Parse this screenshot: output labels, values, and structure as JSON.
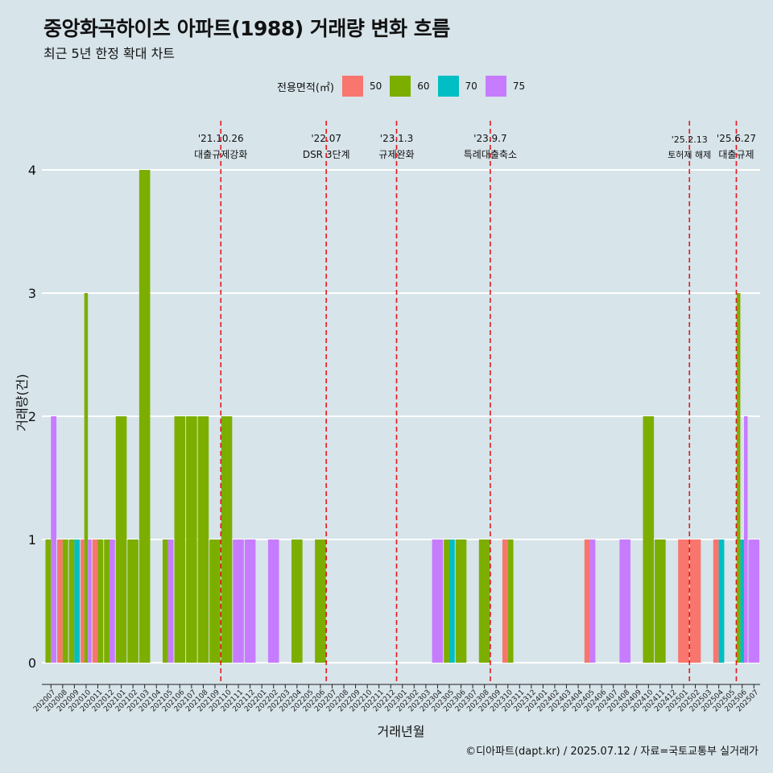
{
  "title": "중앙화곡하이츠 아파트(1988) 거래량 변화 흐름",
  "subtitle": "최근 5년 한정 확대 차트",
  "caption": "©디아파트(dapt.kr) / 2025.07.12 / 자료=국토교통부 실거래가",
  "legend": {
    "title": "전용면적(㎡)",
    "items": [
      {
        "label": "50",
        "color": "#f8766d"
      },
      {
        "label": "60",
        "color": "#7cae00"
      },
      {
        "label": "70",
        "color": "#00bfc4"
      },
      {
        "label": "75",
        "color": "#c77cff"
      }
    ]
  },
  "chart_data": {
    "type": "bar",
    "xlabel": "거래년월",
    "ylabel": "거래량(건)",
    "ylim": [
      0,
      4
    ],
    "yticks": [
      0,
      1,
      2,
      3,
      4
    ],
    "categories": [
      "202007",
      "202008",
      "202009",
      "202010",
      "202011",
      "202012",
      "202101",
      "202102",
      "202103",
      "202104",
      "202105",
      "202106",
      "202107",
      "202108",
      "202109",
      "202110",
      "202111",
      "202112",
      "202201",
      "202202",
      "202203",
      "202204",
      "202205",
      "202206",
      "202207",
      "202208",
      "202209",
      "202210",
      "202211",
      "202212",
      "202301",
      "202302",
      "202303",
      "202304",
      "202305",
      "202306",
      "202307",
      "202308",
      "202309",
      "202310",
      "202311",
      "202312",
      "202401",
      "202402",
      "202403",
      "202404",
      "202405",
      "202406",
      "202407",
      "202408",
      "202409",
      "202410",
      "202411",
      "202412",
      "202501",
      "202502",
      "202503",
      "202504",
      "202505",
      "202506",
      "202507"
    ],
    "series": [
      {
        "name": "50",
        "color": "#f8766d",
        "values": [
          0,
          1,
          0,
          1,
          1,
          0,
          0,
          0,
          0,
          0,
          0,
          0,
          0,
          0,
          0,
          0,
          0,
          0,
          0,
          0,
          0,
          0,
          0,
          0,
          0,
          0,
          0,
          0,
          0,
          0,
          0,
          0,
          0,
          0,
          0,
          0,
          0,
          0,
          0,
          1,
          0,
          0,
          0,
          0,
          0,
          0,
          1,
          0,
          0,
          0,
          0,
          0,
          0,
          0,
          1,
          1,
          0,
          1,
          0,
          0,
          0
        ]
      },
      {
        "name": "60",
        "color": "#7cae00",
        "values": [
          1,
          1,
          1,
          3,
          1,
          1,
          2,
          1,
          4,
          0,
          1,
          2,
          2,
          2,
          1,
          2,
          0,
          0,
          0,
          0,
          0,
          1,
          0,
          1,
          0,
          0,
          0,
          0,
          0,
          0,
          0,
          0,
          0,
          0,
          1,
          1,
          0,
          1,
          0,
          1,
          0,
          0,
          0,
          0,
          0,
          0,
          0,
          0,
          0,
          0,
          0,
          2,
          1,
          0,
          0,
          0,
          0,
          0,
          0,
          3,
          0
        ]
      },
      {
        "name": "70",
        "color": "#00bfc4",
        "values": [
          0,
          0,
          1,
          0,
          0,
          0,
          0,
          0,
          0,
          0,
          0,
          0,
          0,
          0,
          0,
          0,
          0,
          0,
          0,
          0,
          0,
          0,
          0,
          0,
          0,
          0,
          0,
          0,
          0,
          0,
          0,
          0,
          0,
          0,
          1,
          0,
          0,
          0,
          0,
          0,
          0,
          0,
          0,
          0,
          0,
          0,
          0,
          0,
          0,
          0,
          0,
          0,
          0,
          0,
          0,
          0,
          0,
          1,
          0,
          1,
          0
        ]
      },
      {
        "name": "75",
        "color": "#c77cff",
        "values": [
          2,
          0,
          0,
          1,
          0,
          1,
          0,
          0,
          0,
          0,
          1,
          0,
          0,
          0,
          0,
          0,
          1,
          1,
          0,
          1,
          0,
          0,
          0,
          0,
          0,
          0,
          0,
          0,
          0,
          0,
          0,
          0,
          0,
          1,
          0,
          0,
          0,
          0,
          0,
          0,
          0,
          0,
          0,
          0,
          0,
          0,
          1,
          0,
          0,
          1,
          0,
          0,
          0,
          0,
          0,
          0,
          0,
          0,
          0,
          2,
          1
        ]
      }
    ],
    "annotations": [
      {
        "date": "'21.10.26",
        "label": "대출규제강화",
        "category": "202110"
      },
      {
        "date": "'22.07",
        "label": "DSR 3단계",
        "category": "202207"
      },
      {
        "date": "'23.1.3",
        "label": "규제완화",
        "category": "202301"
      },
      {
        "date": "'23.9.7",
        "label": "특례대출축소",
        "category": "202309"
      },
      {
        "date": "'25.2.13",
        "label": "토허제 해제",
        "category": "202502"
      },
      {
        "date": "'25.6.27",
        "label": "대출규제",
        "category": "202506"
      }
    ],
    "grid": true,
    "legend_position": "top"
  }
}
